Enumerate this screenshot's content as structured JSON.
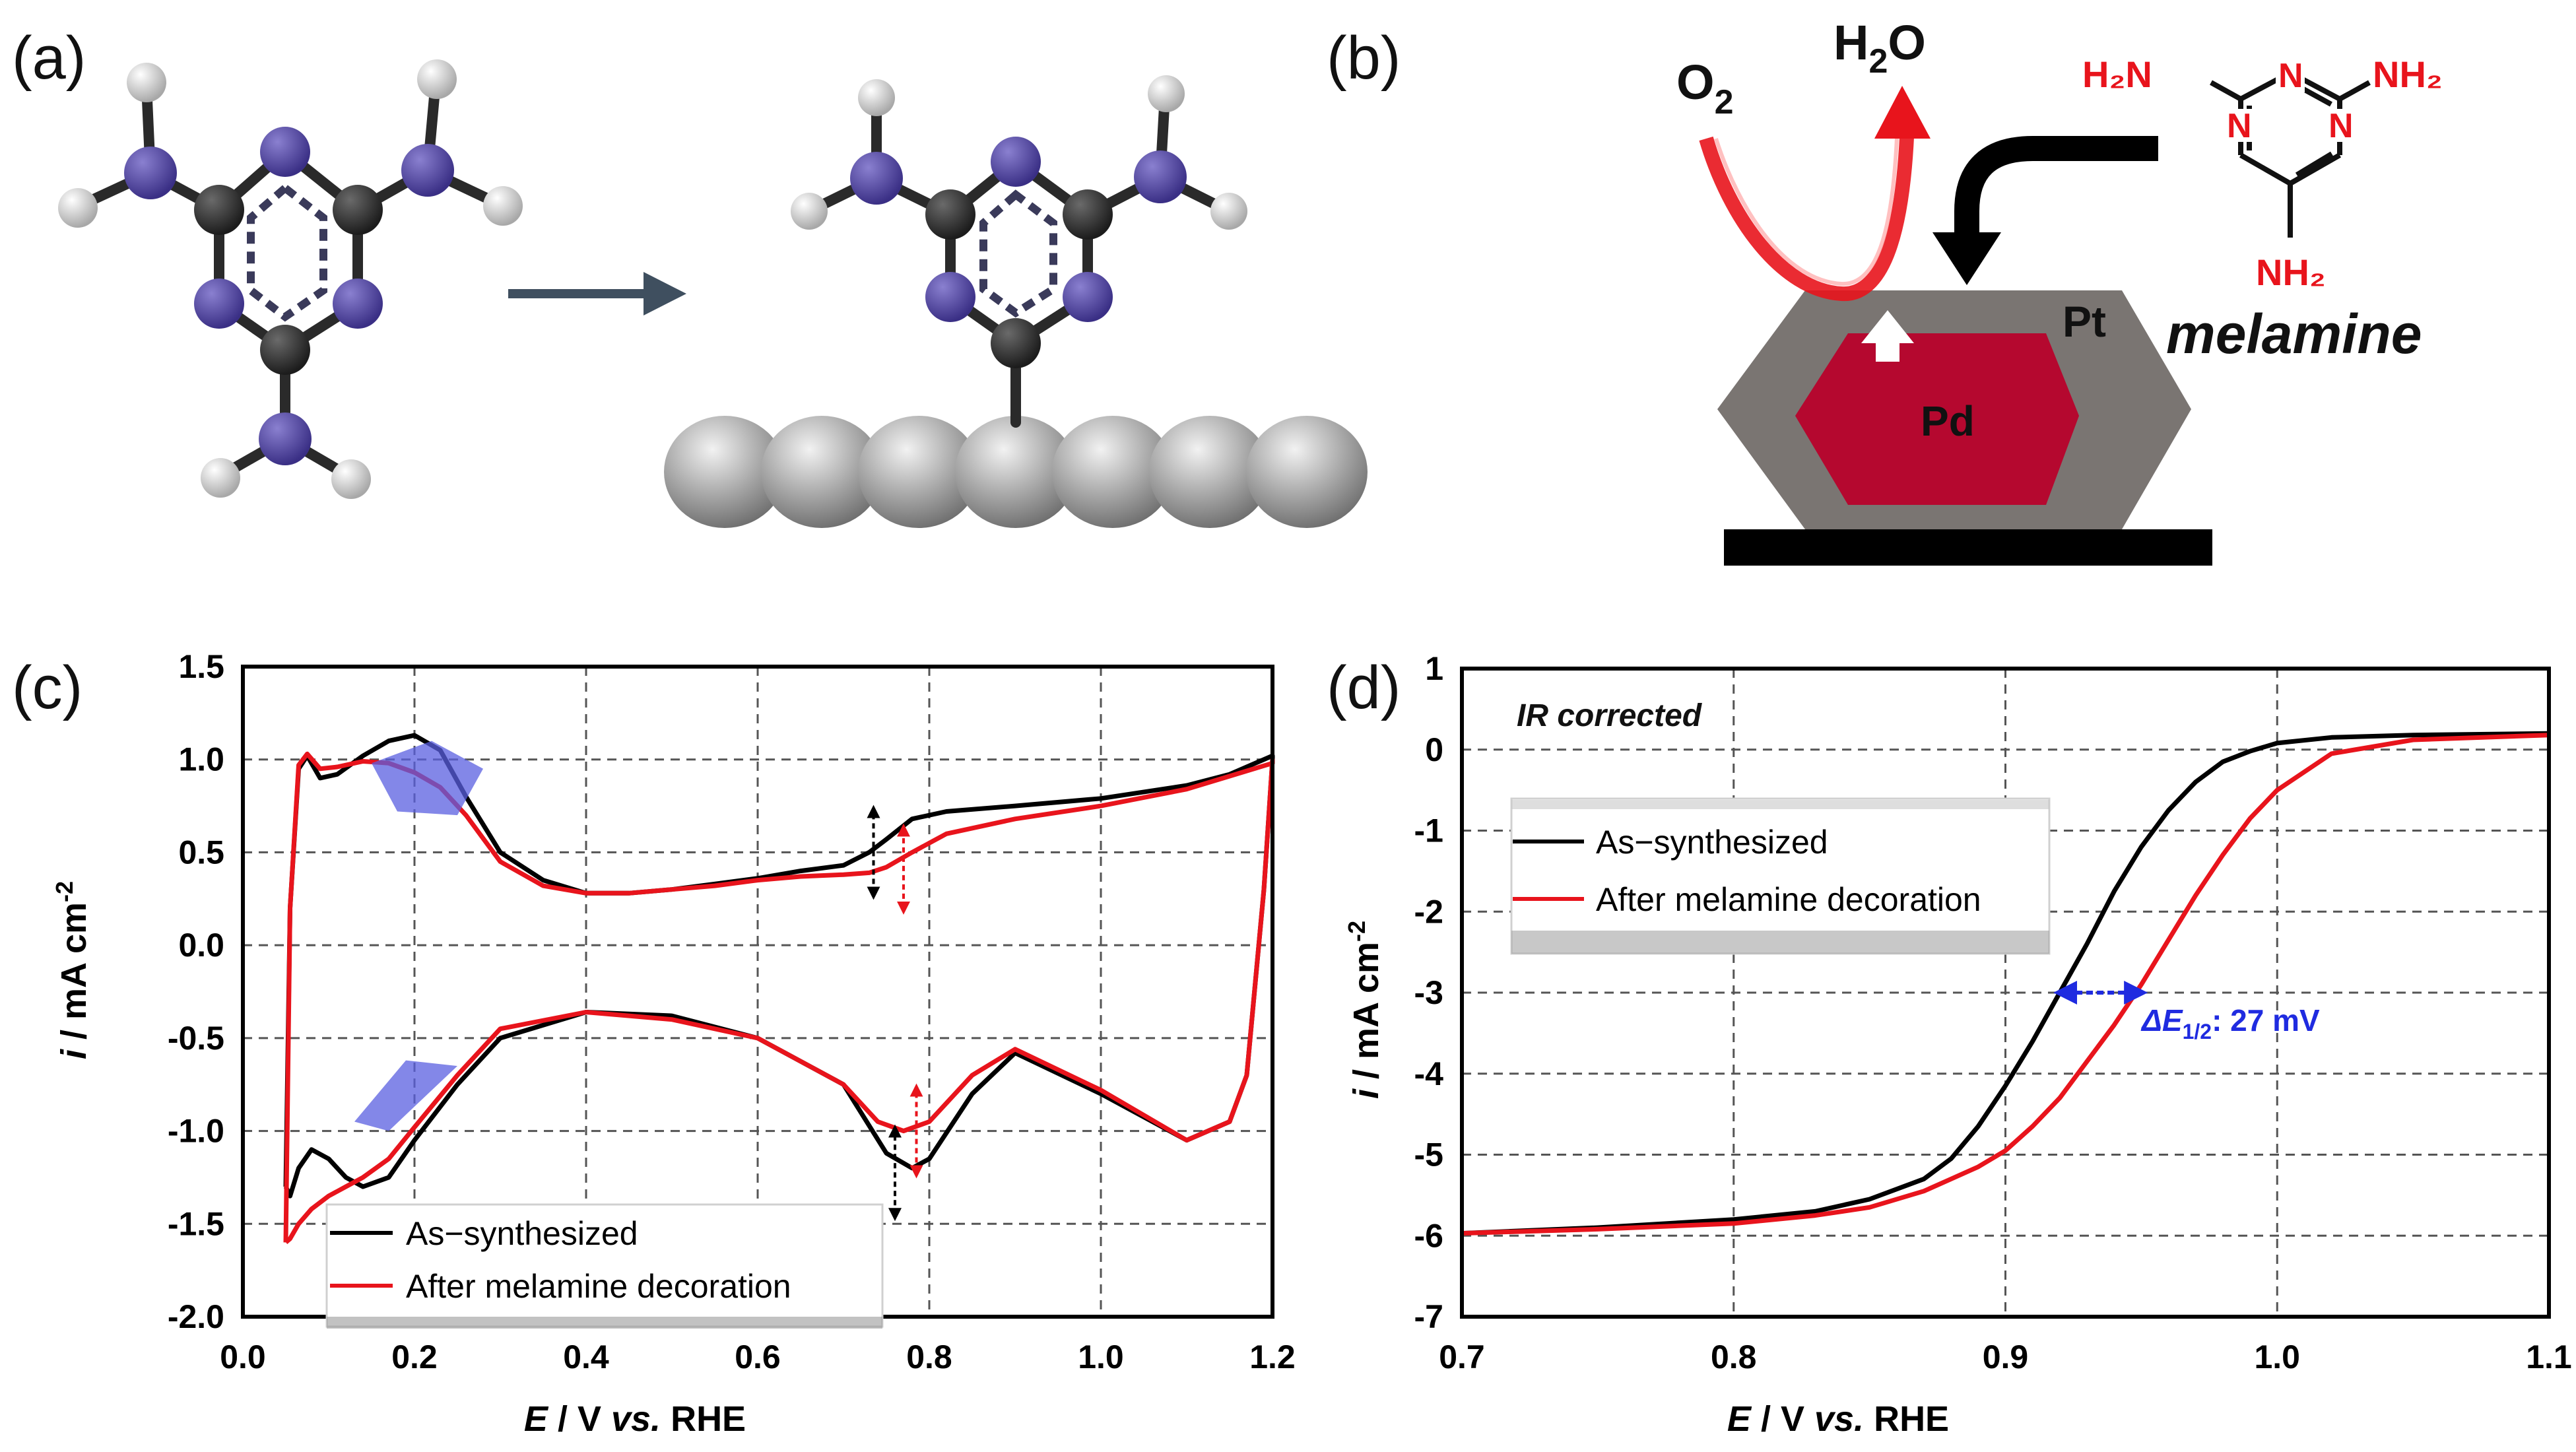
{
  "panels": {
    "a": "(a)",
    "b": "(b)",
    "c": "(c)",
    "d": "(d)"
  },
  "schematic_b": {
    "o2_main": "O",
    "o2_sub": "2",
    "h2o_h": "H",
    "h2o_sub": "2",
    "h2o_o": "O",
    "pt": "Pt",
    "pd": "Pd",
    "melamine": "melamine",
    "nh2_left": "H₂N",
    "nh2_right": "NH₂",
    "nh2_bottom": "NH₂",
    "ring_n": "N",
    "colors": {
      "pt_shell": "#7a7572",
      "pd_core": "#b5082f",
      "arrow_red": "#e8141c",
      "substrate": "#000000",
      "chem_red": "#e8141c"
    }
  },
  "molecule_a": {
    "colors": {
      "nitrogen": "#4b3f9a",
      "carbon": "#2b2b2b",
      "hydrogen": "#d8d8d8",
      "surface": "#9a9a9a",
      "arrow": "#3f4f5f"
    }
  },
  "chart_data": [
    {
      "type": "line",
      "panel": "c",
      "xlabel_E": "E",
      "xlabel_rest": " / V ",
      "xlabel_vs": "vs.",
      "xlabel_end": " RHE",
      "ylabel_i": "i",
      "ylabel_rest": " / mA cm",
      "ylabel_sup": "-2",
      "xlim": [
        0.0,
        1.2
      ],
      "ylim": [
        -2.0,
        1.5
      ],
      "x_ticks": [
        "0.0",
        "0.2",
        "0.4",
        "0.6",
        "0.8",
        "1.0",
        "1.2"
      ],
      "y_ticks": [
        "-2.0",
        "-1.5",
        "-1.0",
        "-0.5",
        "0.0",
        "0.5",
        "1.0",
        "1.5"
      ],
      "grid": true,
      "legend": {
        "placement": "bottom-center",
        "entries": [
          "As−synthesized",
          "After melamine decoration"
        ]
      },
      "series": [
        {
          "name": "As−synthesized",
          "color": "#000000",
          "x": [
            0.05,
            0.055,
            0.065,
            0.075,
            0.09,
            0.11,
            0.14,
            0.17,
            0.2,
            0.23,
            0.26,
            0.3,
            0.35,
            0.4,
            0.45,
            0.5,
            0.55,
            0.6,
            0.65,
            0.7,
            0.73,
            0.75,
            0.78,
            0.82,
            0.9,
            1.0,
            1.1,
            1.15,
            1.2,
            1.2,
            1.19,
            1.17,
            1.15,
            1.1,
            1.0,
            0.9,
            0.85,
            0.8,
            0.78,
            0.75,
            0.7,
            0.6,
            0.5,
            0.4,
            0.3,
            0.25,
            0.2,
            0.17,
            0.14,
            0.12,
            0.1,
            0.08,
            0.065,
            0.055,
            0.05
          ],
          "y": [
            -1.3,
            0.2,
            0.95,
            1.02,
            0.9,
            0.92,
            1.02,
            1.1,
            1.13,
            1.05,
            0.8,
            0.5,
            0.35,
            0.28,
            0.28,
            0.3,
            0.33,
            0.36,
            0.4,
            0.43,
            0.5,
            0.57,
            0.68,
            0.72,
            0.75,
            0.79,
            0.86,
            0.92,
            1.02,
            1.0,
            0.3,
            -0.7,
            -0.95,
            -1.05,
            -0.8,
            -0.58,
            -0.8,
            -1.15,
            -1.2,
            -1.12,
            -0.75,
            -0.5,
            -0.38,
            -0.36,
            -0.5,
            -0.75,
            -1.05,
            -1.25,
            -1.3,
            -1.25,
            -1.15,
            -1.1,
            -1.2,
            -1.35,
            -1.3
          ]
        },
        {
          "name": "After melamine decoration",
          "color": "#e8141c",
          "x": [
            0.05,
            0.055,
            0.065,
            0.075,
            0.09,
            0.11,
            0.14,
            0.17,
            0.2,
            0.23,
            0.26,
            0.3,
            0.35,
            0.4,
            0.45,
            0.5,
            0.55,
            0.6,
            0.65,
            0.7,
            0.73,
            0.75,
            0.78,
            0.82,
            0.9,
            1.0,
            1.1,
            1.15,
            1.2,
            1.2,
            1.19,
            1.17,
            1.15,
            1.1,
            1.0,
            0.9,
            0.85,
            0.8,
            0.77,
            0.74,
            0.7,
            0.6,
            0.5,
            0.4,
            0.3,
            0.25,
            0.2,
            0.17,
            0.14,
            0.12,
            0.1,
            0.08,
            0.065,
            0.055,
            0.05
          ],
          "y": [
            -1.6,
            0.2,
            0.97,
            1.03,
            0.95,
            0.96,
            0.99,
            0.98,
            0.93,
            0.85,
            0.7,
            0.45,
            0.32,
            0.28,
            0.28,
            0.3,
            0.32,
            0.35,
            0.37,
            0.38,
            0.39,
            0.42,
            0.5,
            0.6,
            0.68,
            0.75,
            0.84,
            0.91,
            0.98,
            1.0,
            0.3,
            -0.7,
            -0.95,
            -1.05,
            -0.78,
            -0.56,
            -0.7,
            -0.95,
            -1.0,
            -0.95,
            -0.75,
            -0.5,
            -0.4,
            -0.36,
            -0.45,
            -0.7,
            -0.98,
            -1.15,
            -1.25,
            -1.3,
            -1.35,
            -1.42,
            -1.5,
            -1.58,
            -1.6
          ]
        }
      ],
      "annotation_colors": {
        "blue_region": "#5a5fe0",
        "black_arrow": "#000000",
        "red_arrow": "#e8141c"
      }
    },
    {
      "type": "line",
      "panel": "d",
      "annotation": "IR corrected",
      "xlabel_E": "E",
      "xlabel_rest": " / V ",
      "xlabel_vs": "vs.",
      "xlabel_end": " RHE",
      "ylabel_i": "i",
      "ylabel_rest": " / mA cm",
      "ylabel_sup": "-2",
      "xlim": [
        0.7,
        1.1
      ],
      "ylim": [
        -7,
        1
      ],
      "x_ticks": [
        "0.7",
        "0.8",
        "0.9",
        "1.0",
        "1.1"
      ],
      "y_ticks": [
        "-7",
        "-6",
        "-5",
        "-4",
        "-3",
        "-2",
        "-1",
        "0",
        "1"
      ],
      "grid": true,
      "legend": {
        "placement": "top-left",
        "entries": [
          "As−synthesized",
          "After melamine decoration"
        ]
      },
      "delta_label_main": "ΔE",
      "delta_label_sub": "1/2",
      "delta_label_value": ": 27 mV",
      "series": [
        {
          "name": "As−synthesized",
          "color": "#000000",
          "x": [
            0.7,
            0.75,
            0.8,
            0.83,
            0.85,
            0.87,
            0.88,
            0.89,
            0.9,
            0.91,
            0.92,
            0.93,
            0.94,
            0.95,
            0.96,
            0.97,
            0.98,
            0.99,
            1.0,
            1.02,
            1.05,
            1.1
          ],
          "y": [
            -5.97,
            -5.9,
            -5.8,
            -5.7,
            -5.55,
            -5.3,
            -5.05,
            -4.65,
            -4.15,
            -3.6,
            -3.0,
            -2.4,
            -1.75,
            -1.2,
            -0.75,
            -0.4,
            -0.15,
            -0.02,
            0.08,
            0.15,
            0.18,
            0.2
          ]
        },
        {
          "name": "After melamine decoration",
          "color": "#e8141c",
          "x": [
            0.7,
            0.75,
            0.8,
            0.83,
            0.85,
            0.87,
            0.88,
            0.89,
            0.9,
            0.91,
            0.92,
            0.93,
            0.94,
            0.95,
            0.96,
            0.97,
            0.98,
            0.99,
            1.0,
            1.02,
            1.05,
            1.1
          ],
          "y": [
            -5.97,
            -5.92,
            -5.85,
            -5.75,
            -5.65,
            -5.45,
            -5.3,
            -5.15,
            -4.95,
            -4.65,
            -4.3,
            -3.85,
            -3.4,
            -2.9,
            -2.35,
            -1.8,
            -1.3,
            -0.85,
            -0.5,
            -0.05,
            0.12,
            0.18
          ]
        }
      ]
    }
  ]
}
